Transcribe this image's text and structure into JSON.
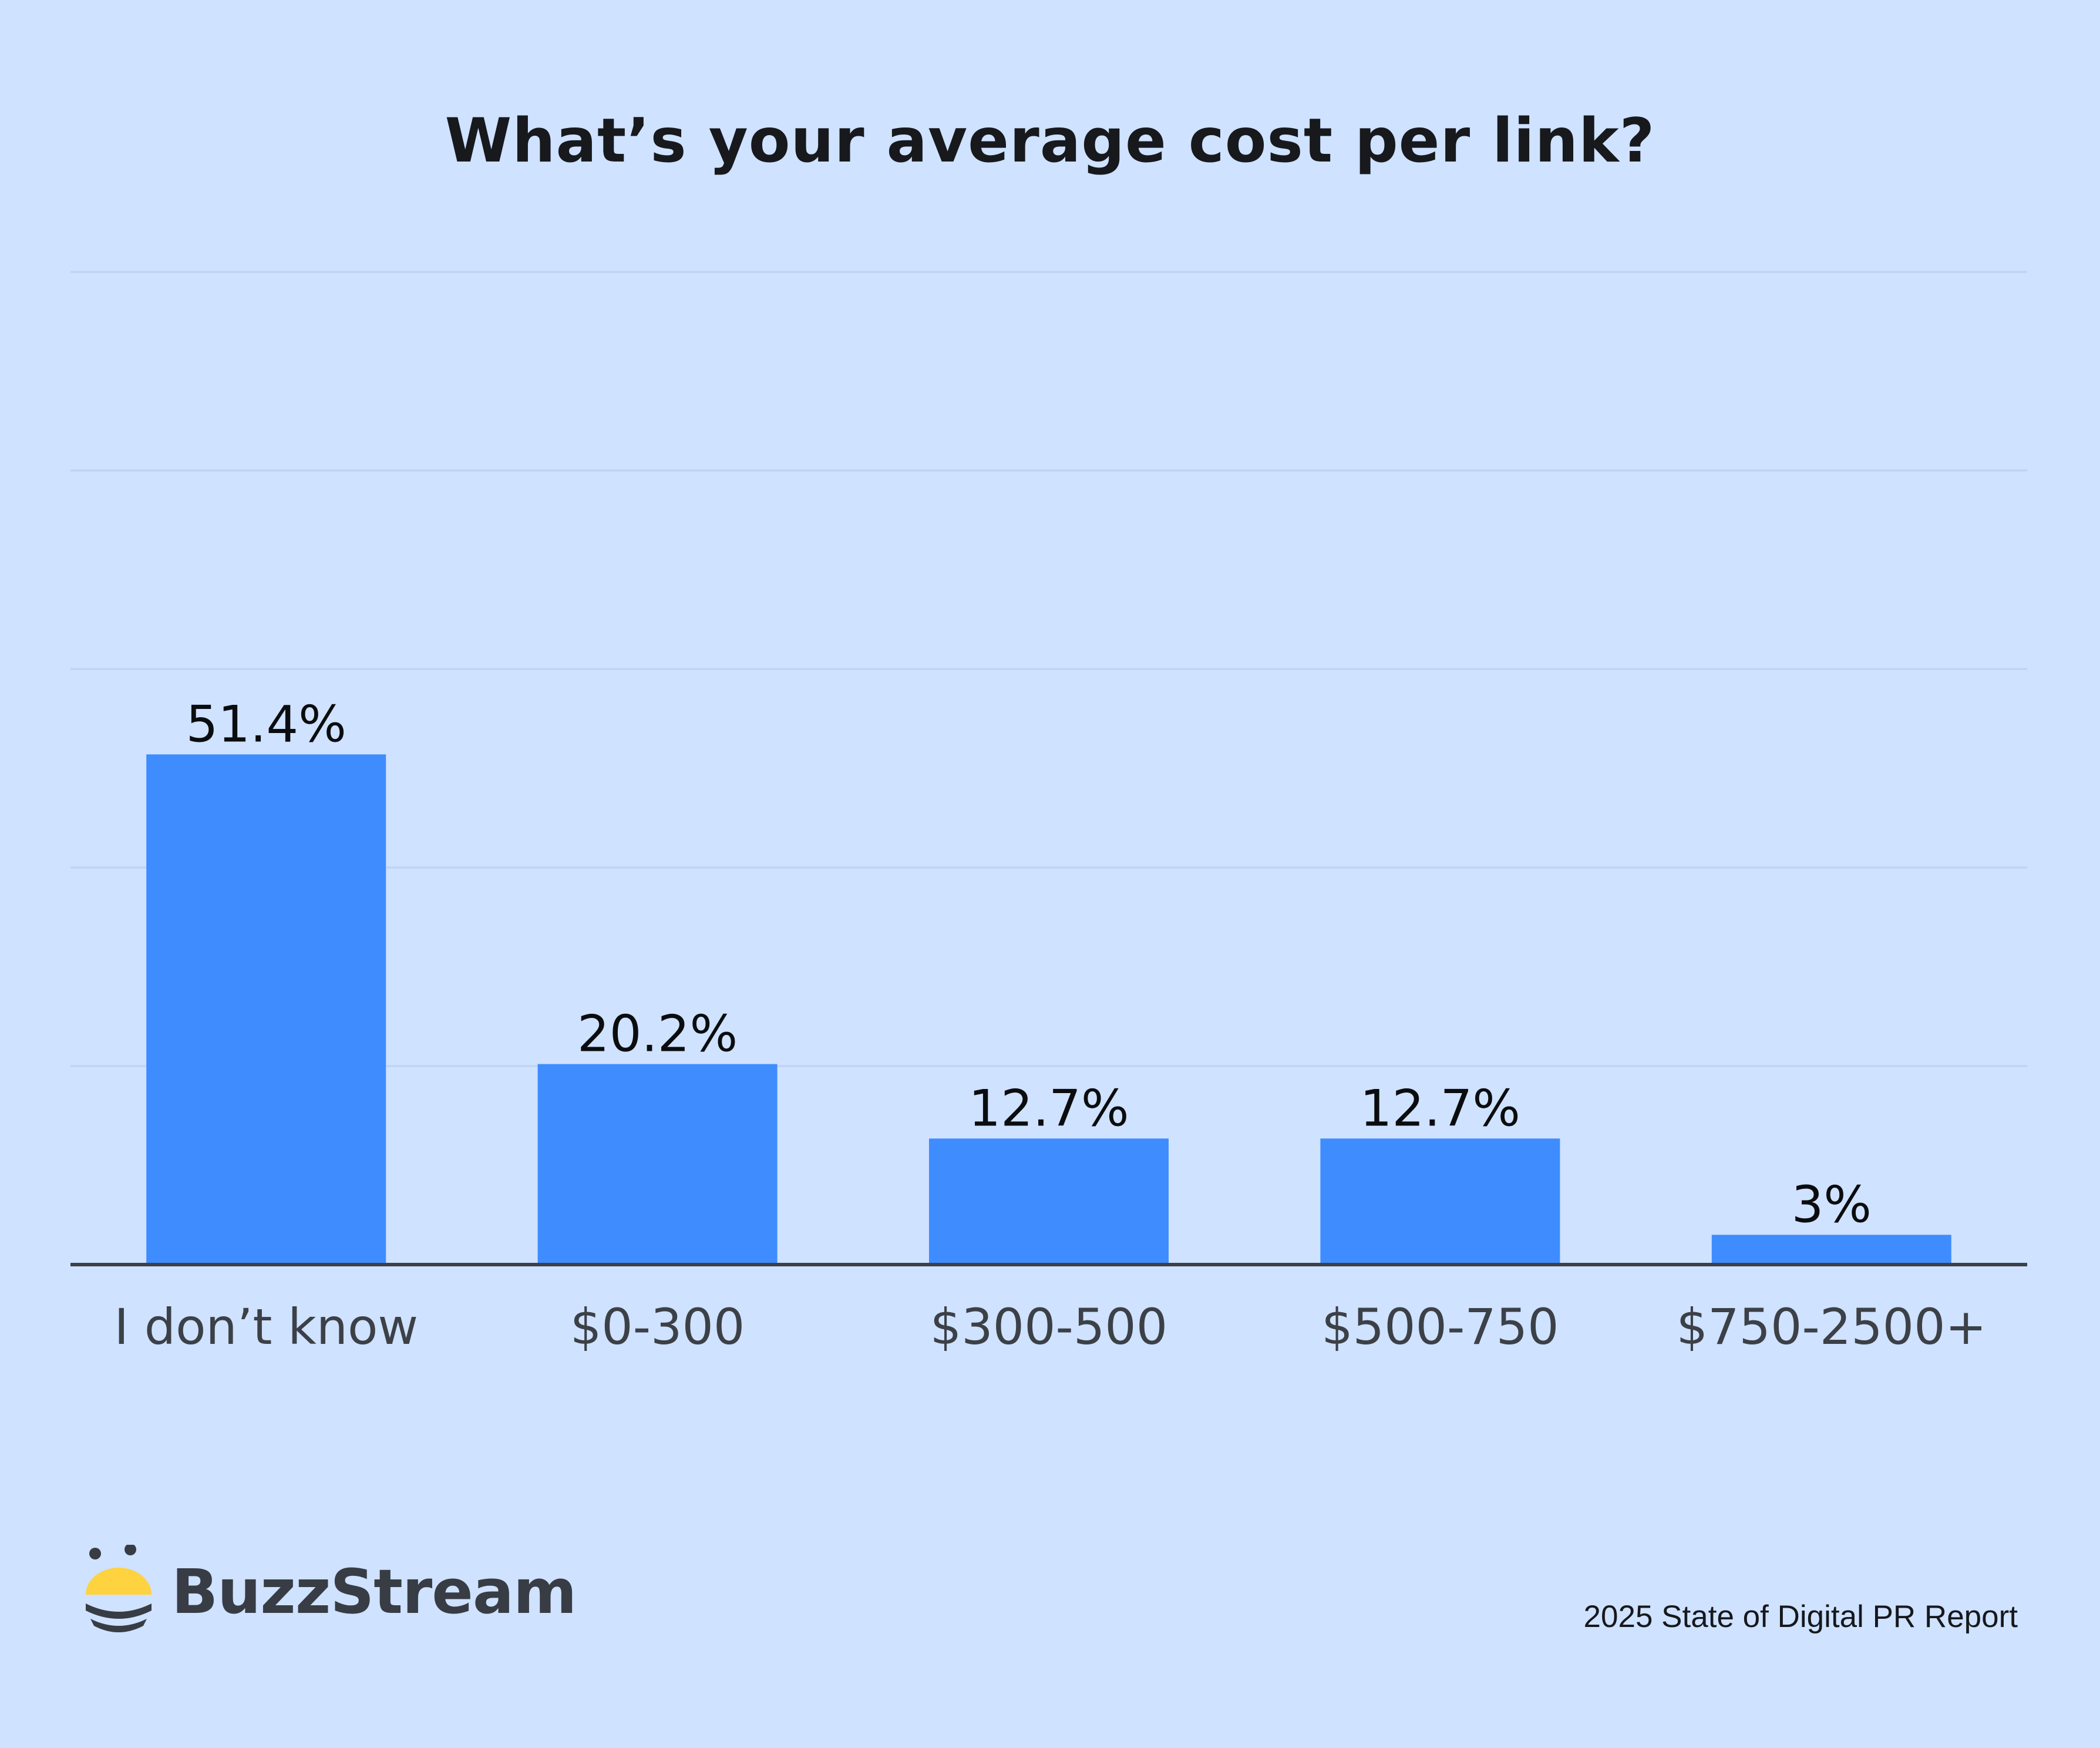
{
  "chart_data": {
    "type": "bar",
    "title": "What’s your average cost per link?",
    "categories": [
      "I don’t know",
      "$0-300",
      "$300-500",
      "$500-750",
      "$750-2500+"
    ],
    "values": [
      51.4,
      20.2,
      12.7,
      12.7,
      3
    ],
    "data_labels": [
      "51.4%",
      "20.2%",
      "12.7%",
      "12.7%",
      "3%"
    ],
    "xlabel": "",
    "ylabel": "",
    "ylim": [
      0,
      100
    ],
    "grid": true,
    "legend": "none",
    "colors": {
      "bar": "#3f8cff",
      "background": "#cfe2ff",
      "grid": "#bcd3f2"
    }
  },
  "brand": {
    "name": "BuzzStream",
    "icon": "bee-icon"
  },
  "footer": {
    "source": "2025 State of Digital PR Report"
  }
}
